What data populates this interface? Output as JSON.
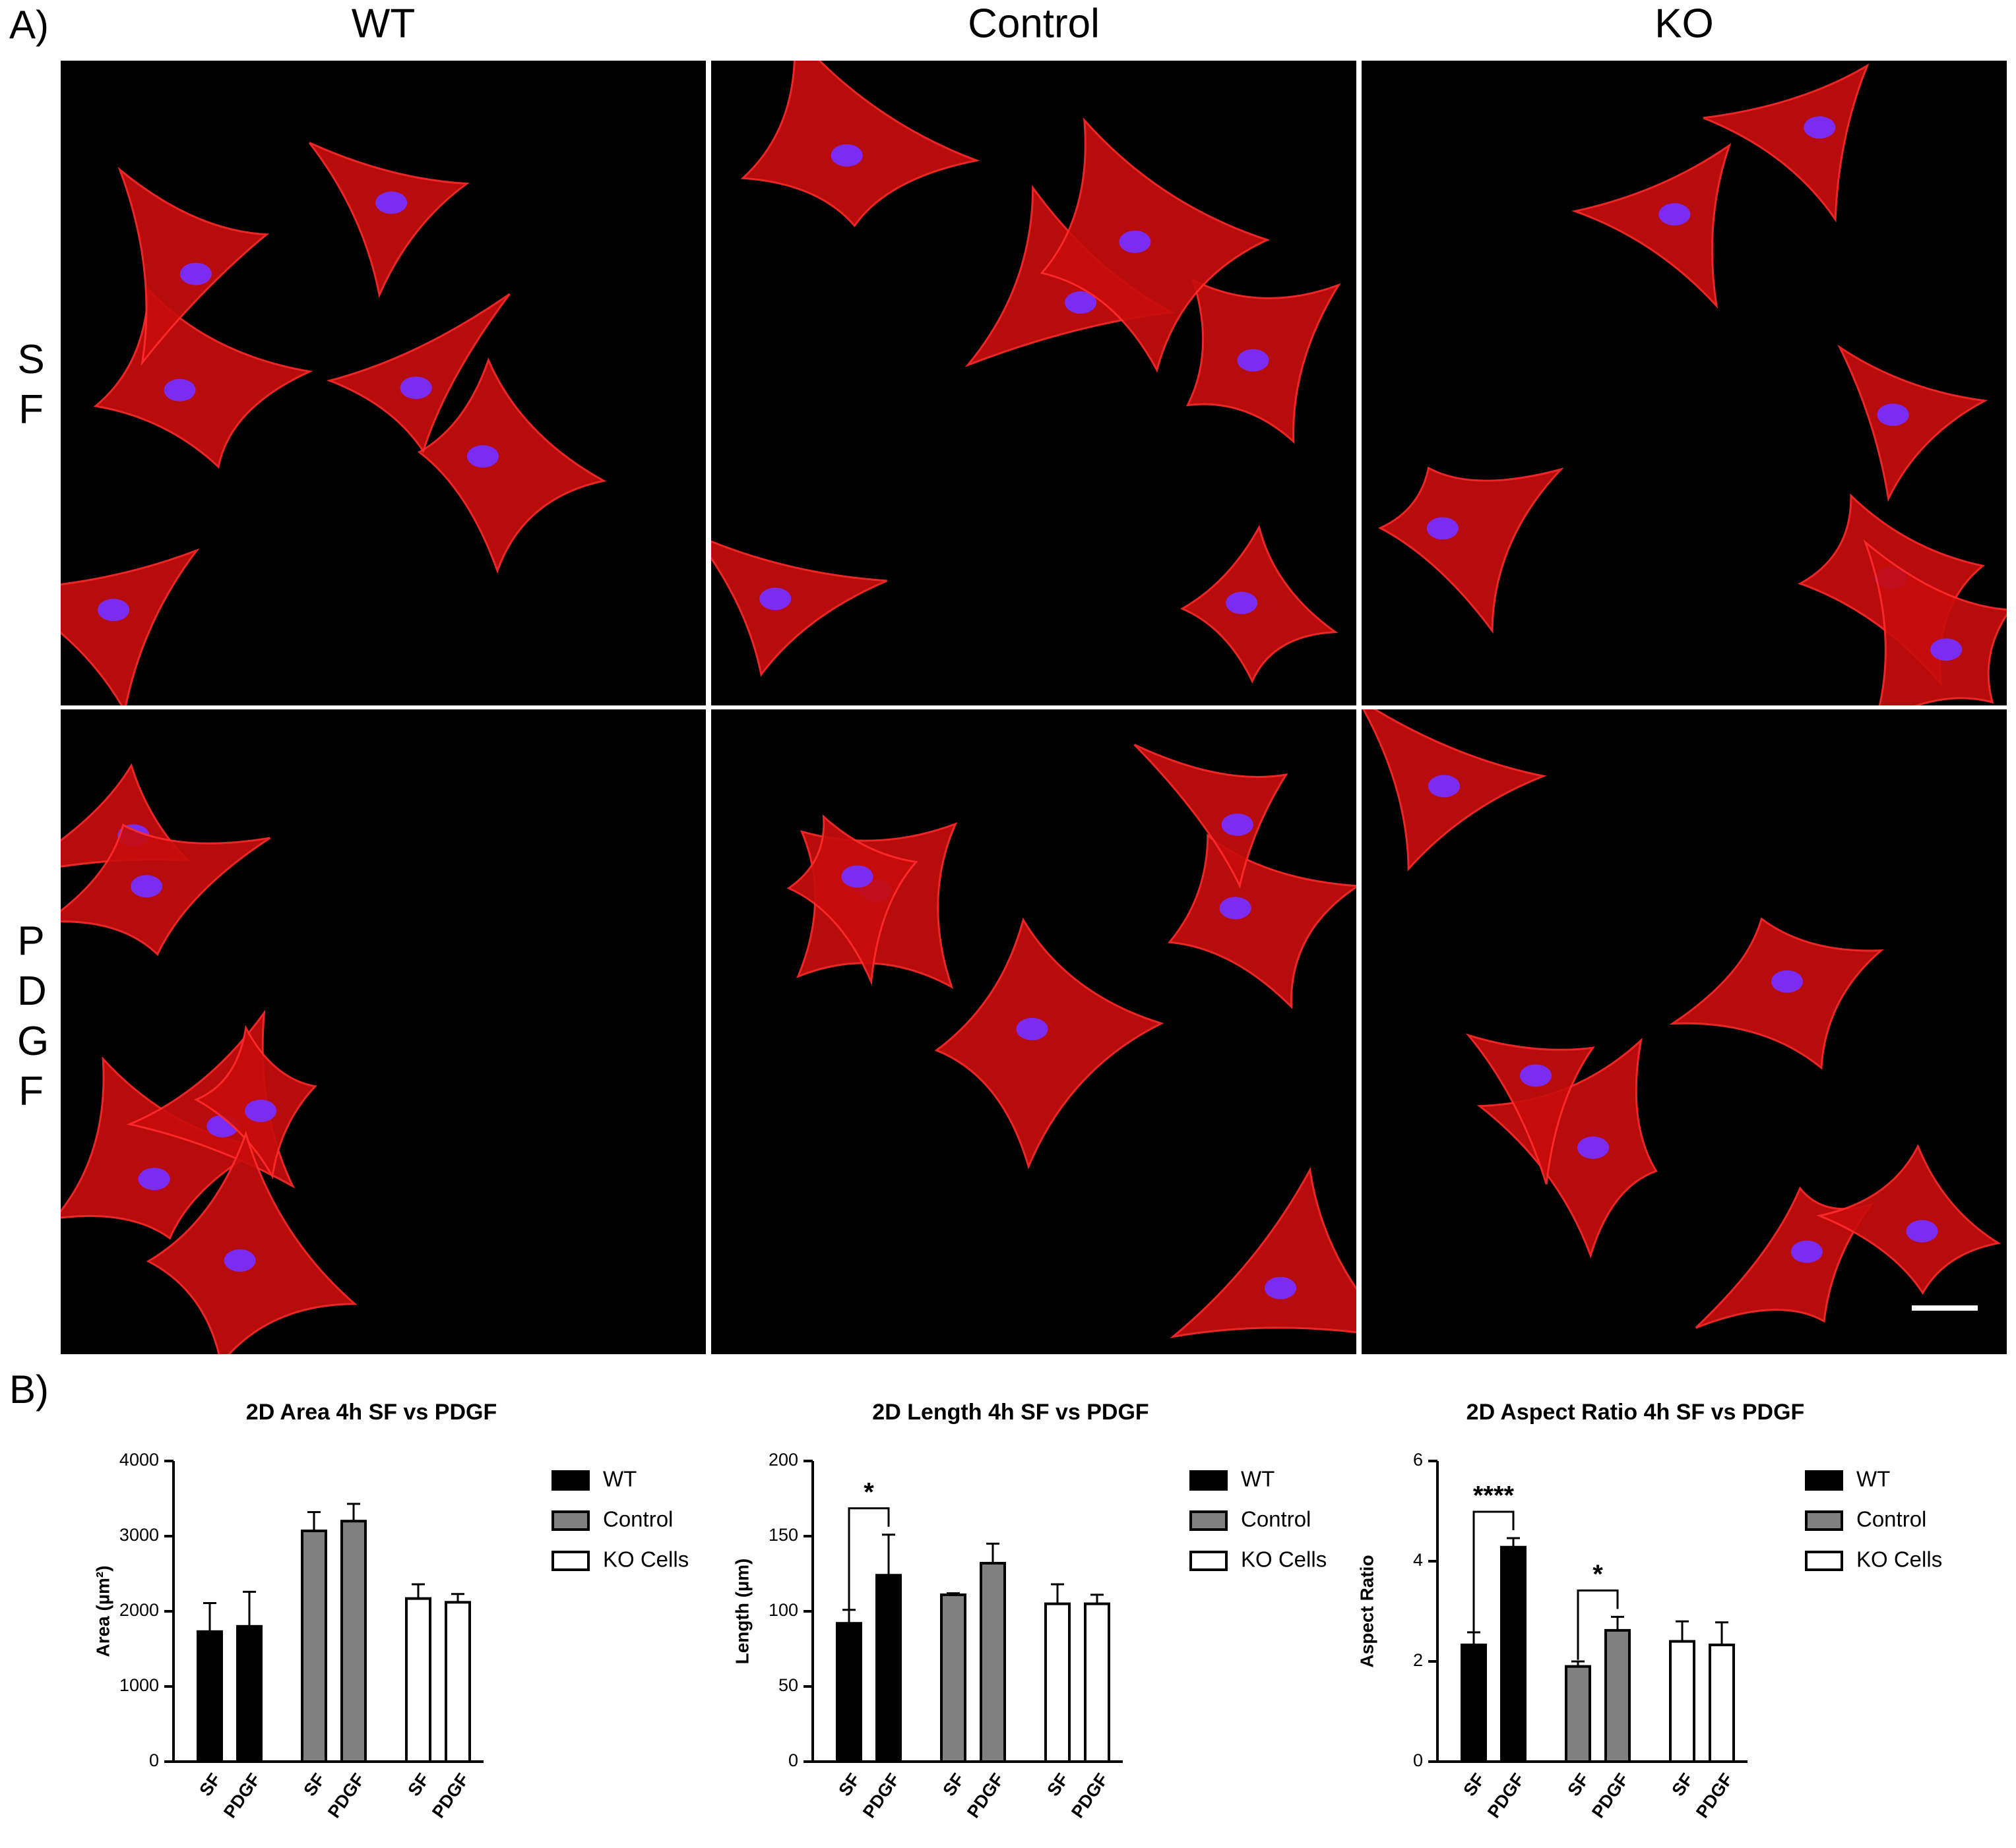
{
  "panel_labels": {
    "a": "A)",
    "b": "B)"
  },
  "columns": [
    "WT",
    "Control",
    "KO"
  ],
  "rows": [
    "SF",
    "PDGF"
  ],
  "chart_data": [
    {
      "type": "bar",
      "title": "2D Area 4h SF vs PDGF",
      "ylabel": "Area (µm²)",
      "categories": [
        "SF",
        "PDGF"
      ],
      "series": [
        {
          "name": "WT",
          "color": "#000000",
          "values": [
            1730,
            1800
          ],
          "errors": [
            380,
            460
          ]
        },
        {
          "name": "Control",
          "color": "#808080",
          "values": [
            3070,
            3200
          ],
          "errors": [
            250,
            230
          ]
        },
        {
          "name": "KO Cells",
          "color": "#ffffff",
          "values": [
            2170,
            2120
          ],
          "errors": [
            190,
            110
          ]
        }
      ],
      "ylim": [
        0,
        4000
      ],
      "yticks": [
        0,
        1000,
        2000,
        3000,
        4000
      ],
      "annotations": []
    },
    {
      "type": "bar",
      "title": "2D Length 4h SF vs PDGF",
      "ylabel": "Length (µm)",
      "categories": [
        "SF",
        "PDGF"
      ],
      "series": [
        {
          "name": "WT",
          "color": "#000000",
          "values": [
            92,
            124
          ],
          "errors": [
            9,
            27
          ]
        },
        {
          "name": "Control",
          "color": "#808080",
          "values": [
            111,
            132
          ],
          "errors": [
            1,
            13
          ]
        },
        {
          "name": "KO Cells",
          "color": "#ffffff",
          "values": [
            105,
            105
          ],
          "errors": [
            13,
            6
          ]
        }
      ],
      "ylim": [
        0,
        200
      ],
      "yticks": [
        0,
        50,
        100,
        150,
        200
      ],
      "annotations": [
        {
          "text": "*",
          "series": "WT"
        }
      ]
    },
    {
      "type": "bar",
      "title": "2D Aspect Ratio 4h SF vs PDGF",
      "ylabel": "Aspect Ratio",
      "categories": [
        "SF",
        "PDGF"
      ],
      "series": [
        {
          "name": "WT",
          "color": "#000000",
          "values": [
            2.33,
            4.28
          ],
          "errors": [
            0.25,
            0.18
          ]
        },
        {
          "name": "Control",
          "color": "#808080",
          "values": [
            1.9,
            2.62
          ],
          "errors": [
            0.1,
            0.27
          ]
        },
        {
          "name": "KO Cells",
          "color": "#ffffff",
          "values": [
            2.4,
            2.33
          ],
          "errors": [
            0.4,
            0.45
          ]
        }
      ],
      "ylim": [
        0,
        6
      ],
      "yticks": [
        0,
        2,
        4,
        6
      ],
      "annotations": [
        {
          "text": "****",
          "series": "WT"
        },
        {
          "text": "*",
          "series": "Control"
        }
      ]
    }
  ]
}
